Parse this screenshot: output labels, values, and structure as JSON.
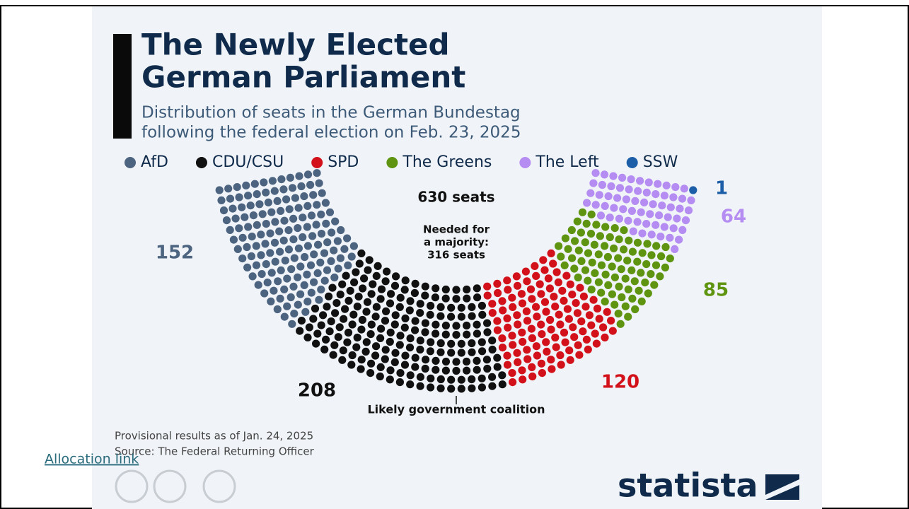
{
  "chart_data": {
    "type": "parliament",
    "title": [
      "The Newly Elected",
      "German Parliament"
    ],
    "subtitle": [
      "Distribution of seats in the German Bundestag",
      "following the federal election on Feb. 23, 2025"
    ],
    "categories": [
      "AfD",
      "CDU/CSU",
      "SPD",
      "The Greens",
      "The Left",
      "SSW"
    ],
    "values": [
      152,
      208,
      120,
      85,
      64,
      1
    ],
    "colors": [
      "#4d6480",
      "#111111",
      "#d3111b",
      "#5e9410",
      "#b48cf2",
      "#1d5ea8"
    ],
    "label_colors": [
      "#4d6480",
      "#111111",
      "#d3111b",
      "#5e9410",
      "#b48cf2",
      "#1d5ea8"
    ],
    "total_label": "630 seats",
    "majority_note": [
      "Needed for",
      "a majority:",
      "316 seats"
    ],
    "coalition_note": "Likely government coalition",
    "footnotes": [
      "Provisional results as of Jan. 24, 2025",
      "Source: The Federal Returning Officer"
    ],
    "brand": "statista"
  },
  "link": "Allocation link"
}
